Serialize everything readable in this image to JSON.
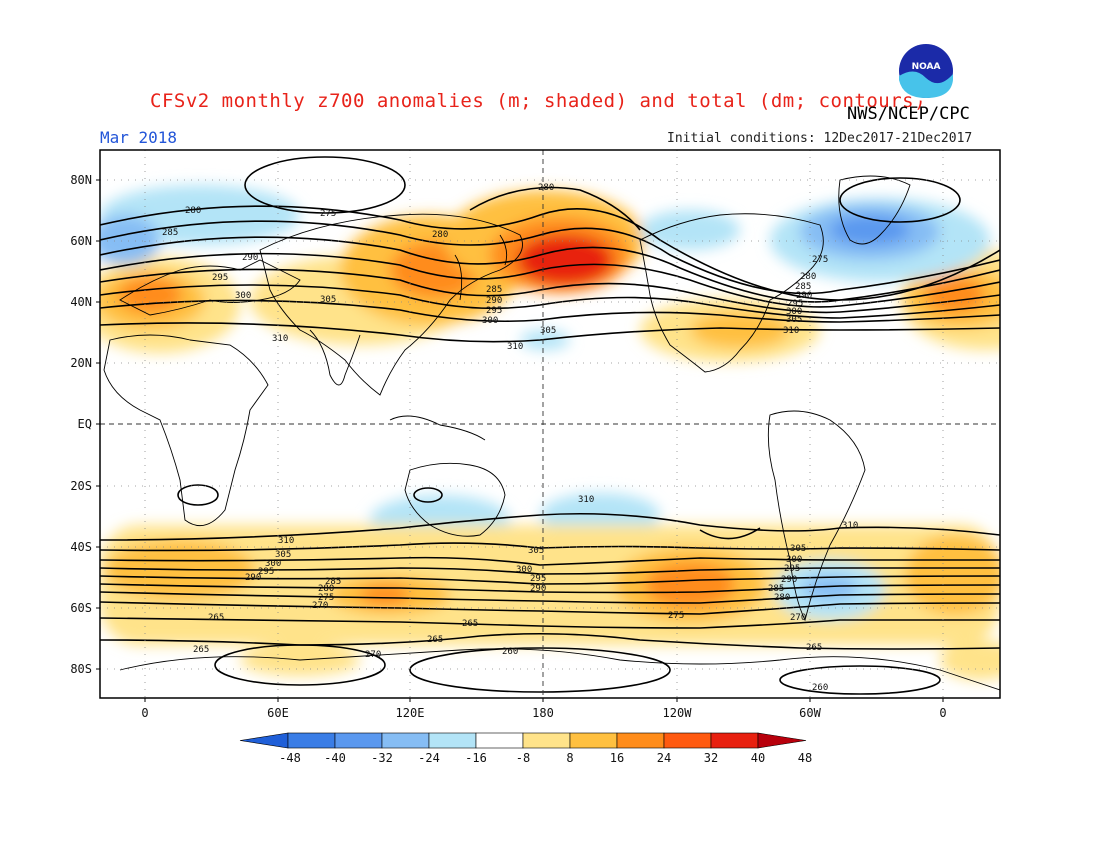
{
  "header": {
    "title": "CFSv2 monthly z700 anomalies (m; shaded) and total (dm; contours)",
    "source": "NWS/NCEP/CPC",
    "month": "Mar 2018",
    "initial_conditions": "Initial conditions: 12Dec2017-21Dec2017"
  },
  "logo": {
    "name": "noaa-logo",
    "text": "NOAA"
  },
  "axes": {
    "lat_labels": [
      "80N",
      "60N",
      "40N",
      "20N",
      "EQ",
      "20S",
      "40S",
      "60S",
      "80S"
    ],
    "lon_labels": [
      "0",
      "60E",
      "120E",
      "180",
      "120W",
      "60W",
      "0"
    ]
  },
  "colorbar": {
    "ticks": [
      "-48",
      "-40",
      "-32",
      "-24",
      "-16",
      "-8",
      "8",
      "16",
      "24",
      "32",
      "40",
      "48"
    ],
    "colors": [
      "#1f5fd8",
      "#3a7de6",
      "#5a98ef",
      "#86bdf4",
      "#b3e4f7",
      "#ffffff",
      "#ffe38a",
      "#ffc040",
      "#ff8c1a",
      "#ff5a10",
      "#e8200f",
      "#b8000c"
    ]
  },
  "contour_labels": {
    "nh": [
      "275",
      "280",
      "285",
      "290",
      "295",
      "300",
      "305",
      "310"
    ],
    "nh_west": [
      "280",
      "285",
      "290",
      "295",
      "300"
    ],
    "nh_center": [
      "280",
      "285",
      "290",
      "295",
      "300",
      "305",
      "310",
      "280"
    ],
    "nh_east": [
      "275",
      "280",
      "285",
      "290",
      "295",
      "300",
      "305",
      "310"
    ],
    "sh_west": [
      "310",
      "305",
      "300",
      "295",
      "290",
      "285",
      "280",
      "275",
      "270"
    ],
    "sh_center": [
      "310",
      "305",
      "300",
      "295",
      "290"
    ],
    "sh_east": [
      "310",
      "305",
      "300",
      "295",
      "290",
      "285",
      "280",
      "270",
      "265"
    ],
    "sh_low": [
      "265",
      "265",
      "265",
      "270",
      "265",
      "260",
      "260",
      "275"
    ]
  }
}
